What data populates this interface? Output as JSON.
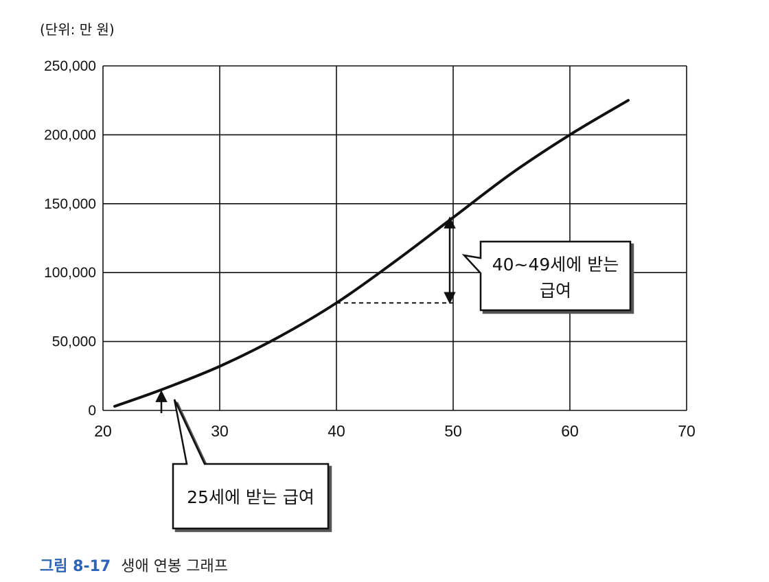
{
  "unit_label": "(단위: 만 원)",
  "caption": {
    "number": "그림 8-17",
    "text": "생애 연봉 그래프"
  },
  "callouts": {
    "range_40_49": {
      "line1": "40~49세에 받는",
      "line2": "급여"
    },
    "age_25": {
      "text": "25세에 받는 급여"
    }
  },
  "colors": {
    "caption_accent": "#2b63b8",
    "curve": "#111111",
    "grid": "#111111"
  },
  "chart_data": {
    "type": "line",
    "title": "",
    "xlabel": "",
    "ylabel": "(단위: 만 원)",
    "xlim": [
      20,
      70
    ],
    "ylim": [
      0,
      250000
    ],
    "x_ticks": [
      20,
      30,
      40,
      50,
      60,
      70
    ],
    "y_ticks": [
      0,
      50000,
      100000,
      150000,
      200000,
      250000
    ],
    "x_tick_labels": [
      "20",
      "30",
      "40",
      "50",
      "60",
      "70"
    ],
    "y_tick_labels": [
      "0",
      "50,000",
      "100,000",
      "150,000",
      "200,000",
      "250,000"
    ],
    "grid": true,
    "series": [
      {
        "x": [
          21,
          25,
          30,
          35,
          40,
          45,
          50,
          55,
          60,
          65
        ],
        "y": [
          3000,
          15000,
          32000,
          53000,
          78000,
          108000,
          140000,
          172000,
          200000,
          225000
        ]
      }
    ],
    "annotations": [
      {
        "label": "40~49세에 받는 급여",
        "x_from": 40,
        "x_to": 50,
        "y_low": 78000,
        "y_high": 140000
      },
      {
        "label": "25세에 받는 급여",
        "x": 25,
        "y": 15000
      }
    ]
  }
}
